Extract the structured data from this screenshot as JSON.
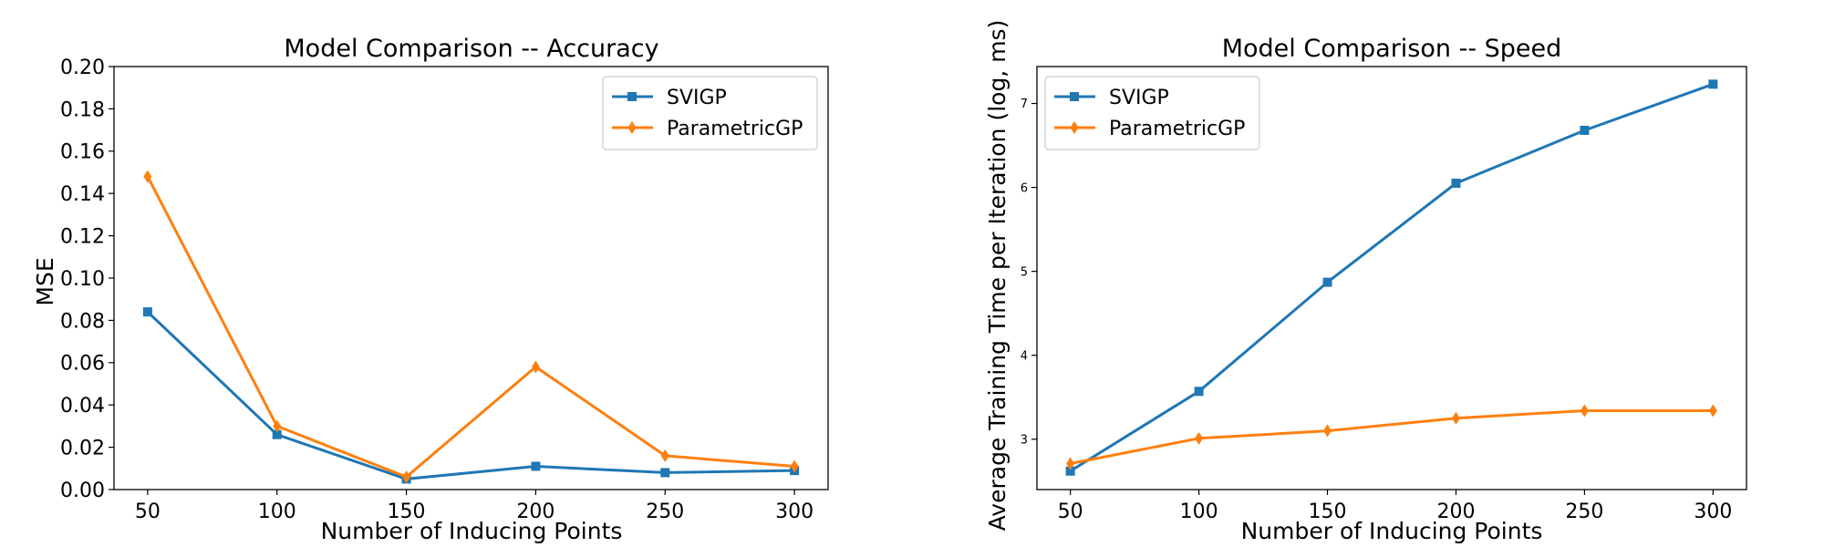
{
  "chart_data": [
    {
      "type": "line",
      "title": "Model Comparison -- Accuracy",
      "xlabel": "Number of Inducing Points",
      "ylabel": "MSE",
      "x": [
        50,
        100,
        150,
        200,
        250,
        300
      ],
      "xticks": [
        "50",
        "100",
        "150",
        "200",
        "250",
        "300"
      ],
      "yticks": [
        "0.00",
        "0.02",
        "0.04",
        "0.06",
        "0.08",
        "0.10",
        "0.12",
        "0.14",
        "0.16",
        "0.18",
        "0.20"
      ],
      "xlim": [
        37,
        313
      ],
      "ylim": [
        0,
        0.2
      ],
      "grid": false,
      "legend_position": "upper right",
      "series": [
        {
          "name": "SVIGP",
          "color": "#1f77b4",
          "marker": "square",
          "values": [
            0.084,
            0.026,
            0.005,
            0.011,
            0.008,
            0.009
          ]
        },
        {
          "name": "ParametricGP",
          "color": "#ff7f0e",
          "marker": "diamond",
          "values": [
            0.148,
            0.03,
            0.006,
            0.058,
            0.016,
            0.011
          ]
        }
      ]
    },
    {
      "type": "line",
      "title": "Model Comparison -- Speed",
      "xlabel": "Number of Inducing Points",
      "ylabel": "Average Training Time per Iteration (log, ms)",
      "x": [
        50,
        100,
        150,
        200,
        250,
        300
      ],
      "xticks": [
        "50",
        "100",
        "150",
        "200",
        "250",
        "300"
      ],
      "yticks": [
        "3",
        "4",
        "5",
        "6",
        "7"
      ],
      "xlim": [
        37,
        313
      ],
      "ylim": [
        2.4,
        7.44
      ],
      "grid": false,
      "legend_position": "upper left",
      "series": [
        {
          "name": "SVIGP",
          "color": "#1f77b4",
          "marker": "square",
          "values": [
            2.62,
            3.57,
            4.87,
            6.05,
            6.68,
            7.23
          ]
        },
        {
          "name": "ParametricGP",
          "color": "#ff7f0e",
          "marker": "diamond",
          "values": [
            2.71,
            3.01,
            3.1,
            3.25,
            3.34,
            3.34
          ]
        }
      ]
    }
  ]
}
